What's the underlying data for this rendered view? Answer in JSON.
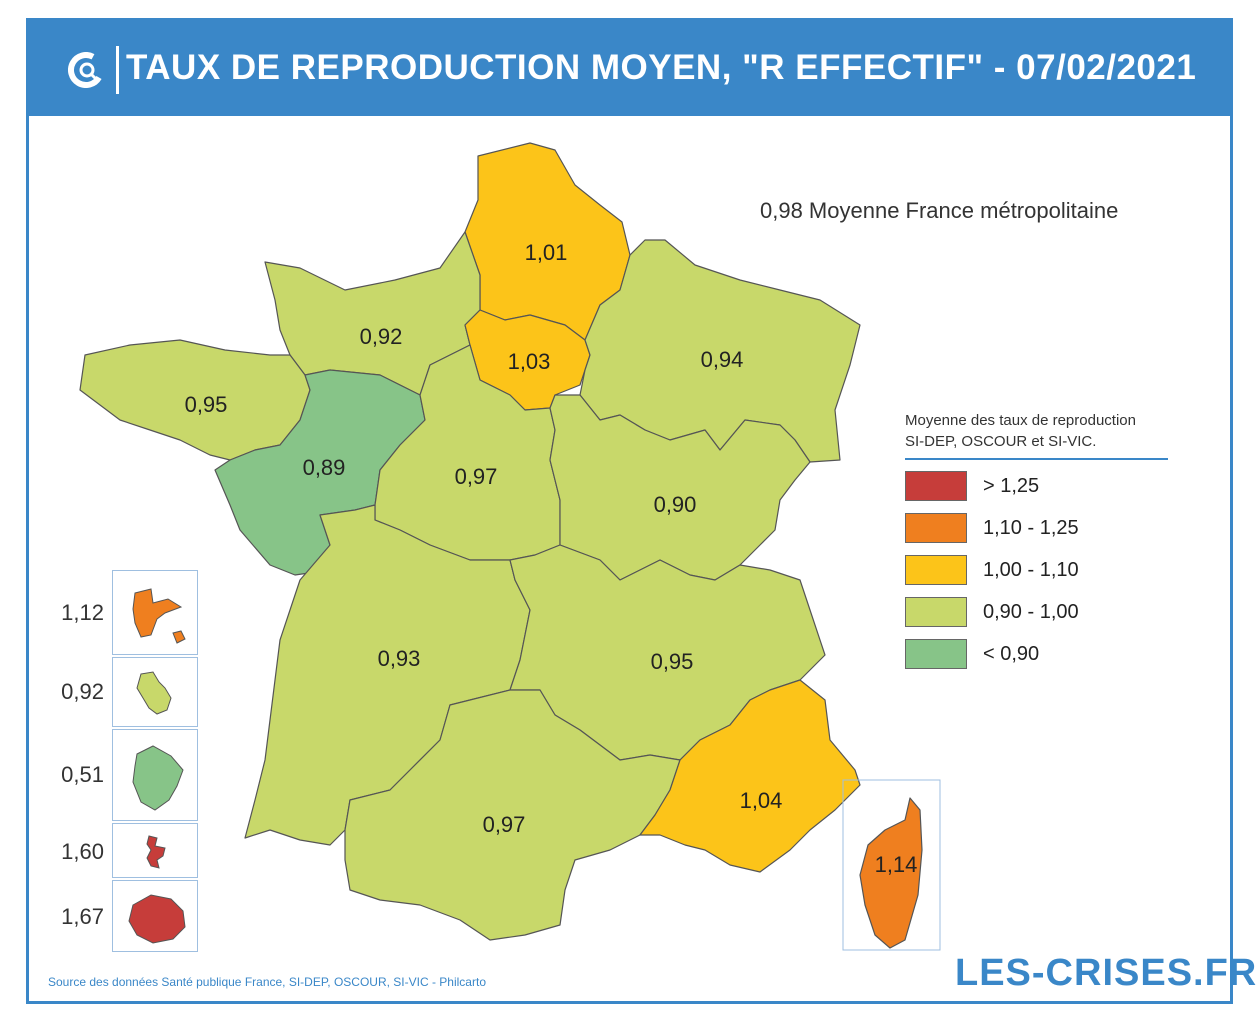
{
  "header": {
    "title": "TAUX DE REPRODUCTION MOYEN, \"R EFFECTIF\" - 07/02/2021",
    "logo_icon": "les-crises-c-logo-icon"
  },
  "national_average": "0,98 Moyenne France métropolitaine",
  "legend": {
    "title_line1": "Moyenne des taux de reproduction",
    "title_line2": "SI-DEP, OSCOUR et SI-VIC.",
    "items": [
      {
        "label": "> 1,25",
        "color": "#c63d3a"
      },
      {
        "label": "1,10 - 1,25",
        "color": "#ef7f1f"
      },
      {
        "label": "1,00 - 1,10",
        "color": "#fcc419"
      },
      {
        "label": "0,90 - 1,00",
        "color": "#c8d86a"
      },
      {
        "label": "< 0,90",
        "color": "#87c488"
      }
    ]
  },
  "regions": {
    "hauts_de_france": "1,01",
    "normandie": "0,92",
    "ile_de_france": "1,03",
    "grand_est": "0,94",
    "bretagne": "0,95",
    "pays_de_la_loire": "0,89",
    "centre_val_de_loire": "0,97",
    "bourgogne_franche_comte": "0,90",
    "nouvelle_aquitaine": "0,93",
    "auvergne_rhone_alpes": "0,95",
    "occitanie": "0,97",
    "provence_alpes_cote_azur": "1,04",
    "corse": "1,14"
  },
  "overseas": [
    {
      "value": "1,12",
      "color": "#ef7f1f"
    },
    {
      "value": "0,92",
      "color": "#c8d86a"
    },
    {
      "value": "0,51",
      "color": "#87c488"
    },
    {
      "value": "1,60",
      "color": "#c63d3a"
    },
    {
      "value": "1,67",
      "color": "#c63d3a"
    }
  ],
  "source": "Source des données Santé publique France, SI-DEP, OSCOUR, SI-VIC - Philcarto",
  "brand": "LES-CRISES.FR"
}
